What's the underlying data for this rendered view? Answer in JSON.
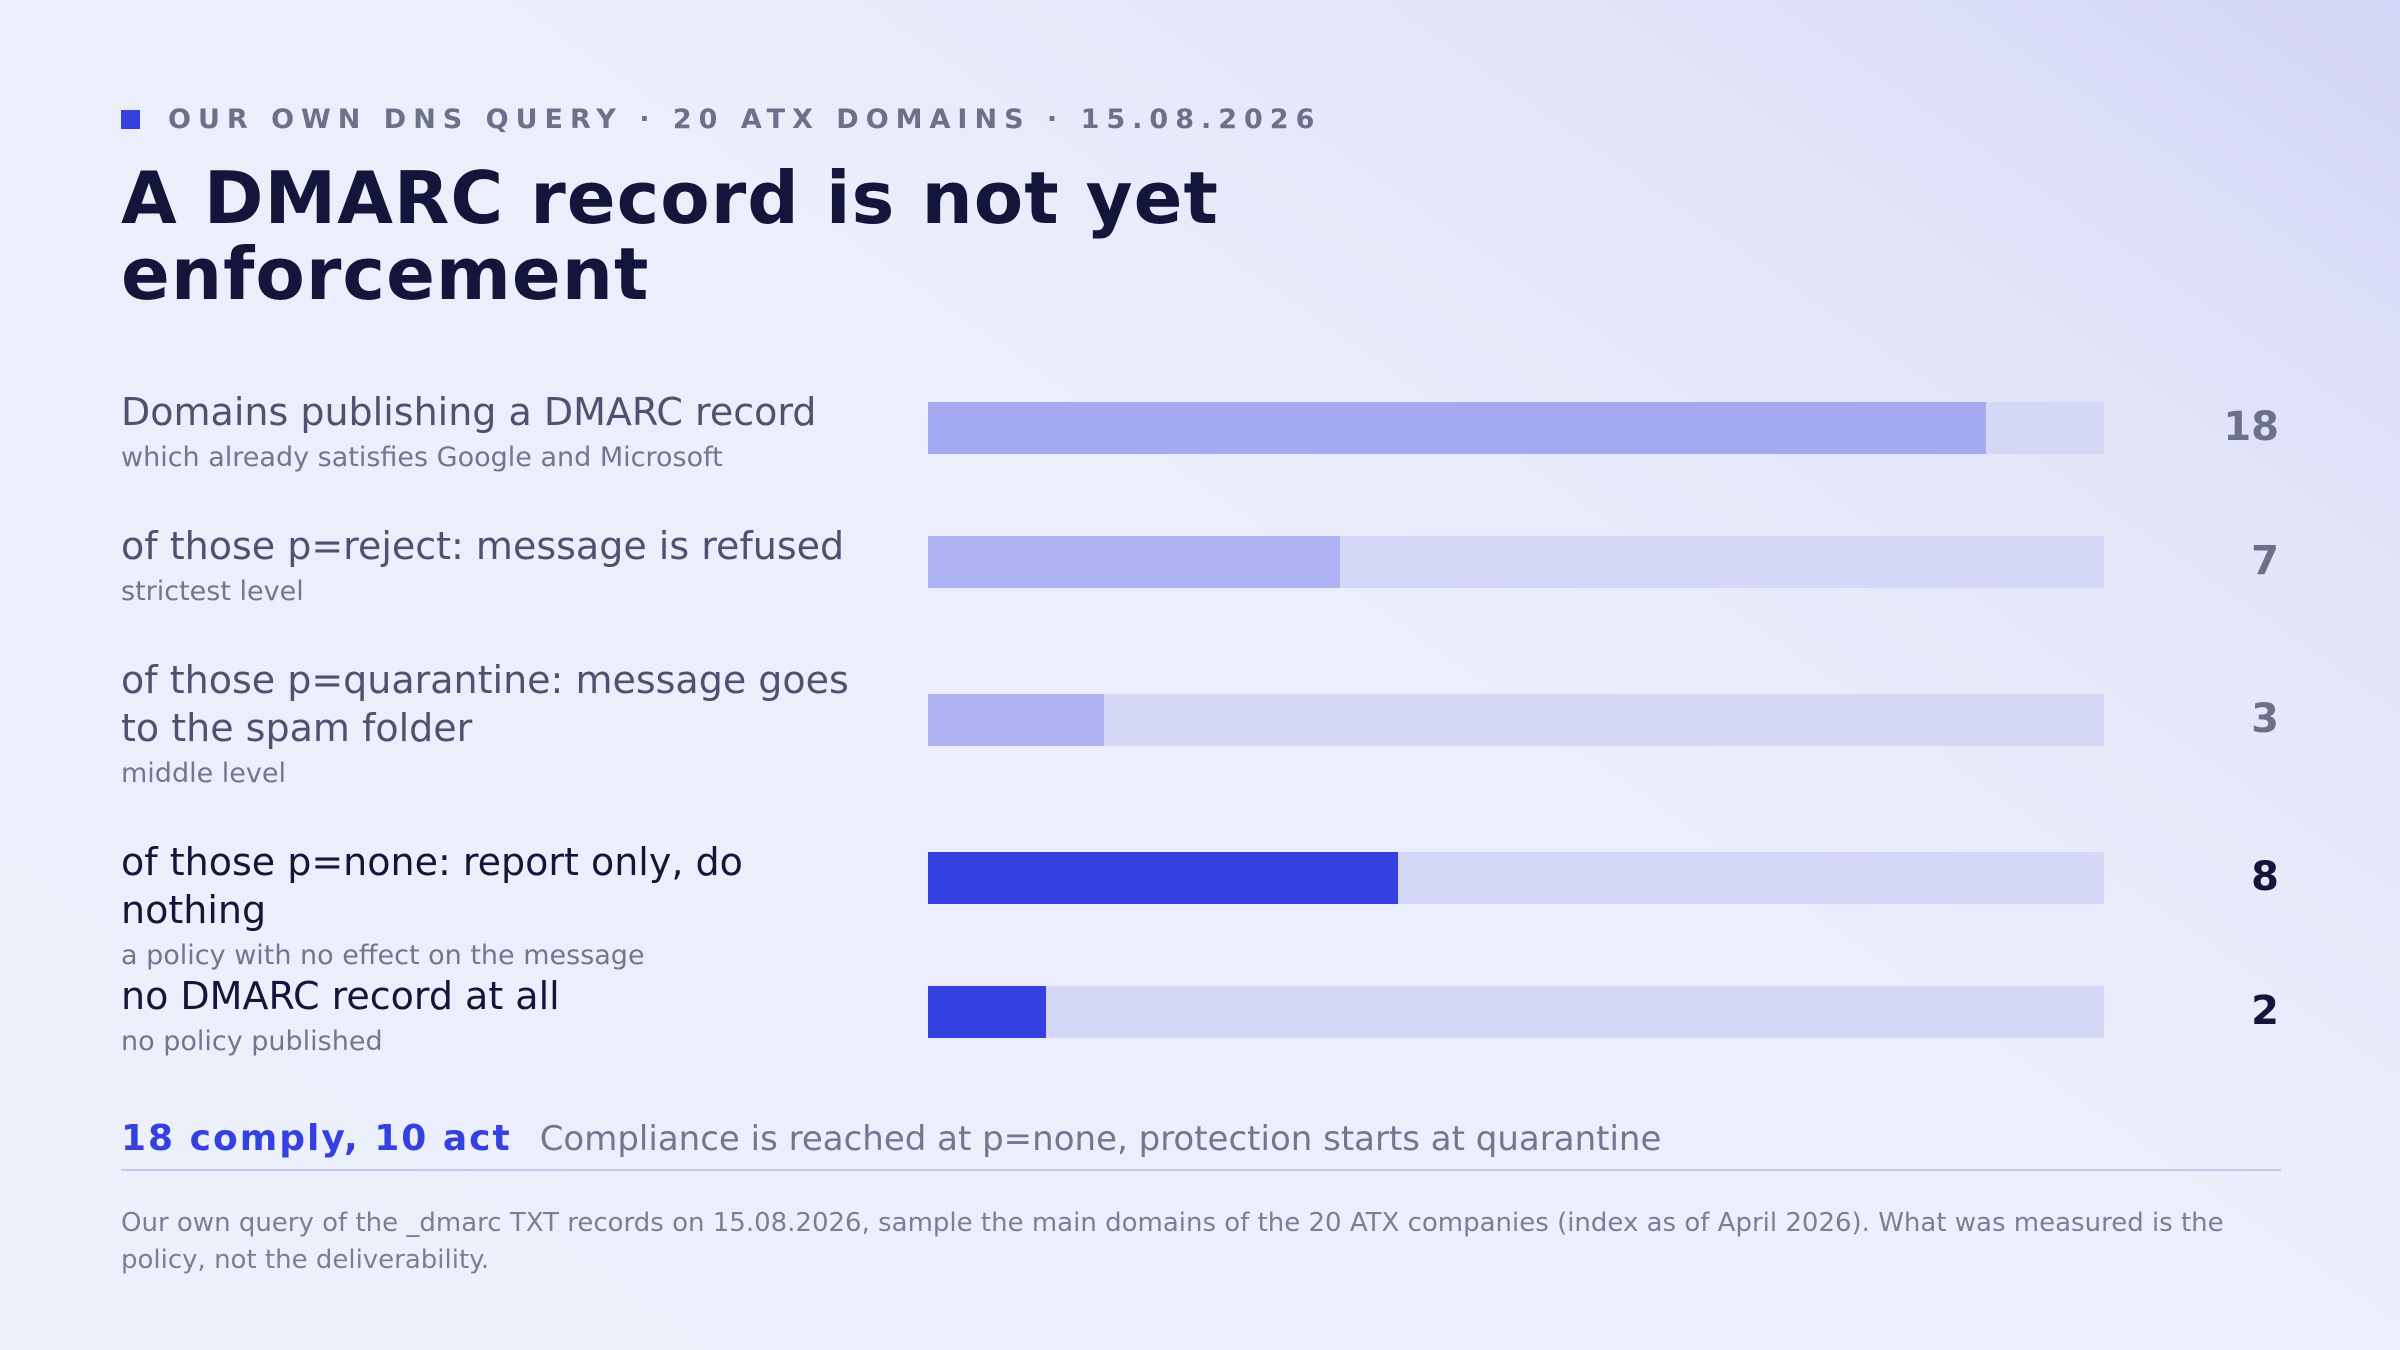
{
  "eyebrow": "OUR OWN DNS QUERY · 20 ATX DOMAINS · 15.08.2026",
  "title": "A DMARC record is not yet enforcement",
  "colors": {
    "accent": "#3540e0",
    "muted_bar": "#adb2f2",
    "track": "#d4d7f5",
    "text_dark": "#14153a"
  },
  "chart_data": {
    "type": "bar",
    "orientation": "horizontal",
    "max": 20,
    "rows": [
      {
        "label": "Domains publishing a DMARC record",
        "sublabel": "which already satisfies Google and Microsoft",
        "value": 18,
        "emphasis": false
      },
      {
        "label": "of those p=reject: message is refused",
        "sublabel": "strictest level",
        "value": 7,
        "emphasis": false
      },
      {
        "label": "of those p=quarantine: message goes to the spam folder",
        "sublabel": "middle level",
        "value": 3,
        "emphasis": false
      },
      {
        "label": "of those p=none: report only, do nothing",
        "sublabel": "a policy with no effect on the message",
        "value": 8,
        "emphasis": true
      },
      {
        "label": "no DMARC record at all",
        "sublabel": "no policy published",
        "value": 2,
        "emphasis": true
      }
    ]
  },
  "summary": {
    "key": "18 comply, 10 act",
    "text": "Compliance is reached at p=none, protection starts at quarantine"
  },
  "footnote": "Our own query of the _dmarc TXT records on 15.08.2026, sample the main domains of the 20 ATX companies (index as of April 2026). What was measured is the policy, not the deliverability."
}
